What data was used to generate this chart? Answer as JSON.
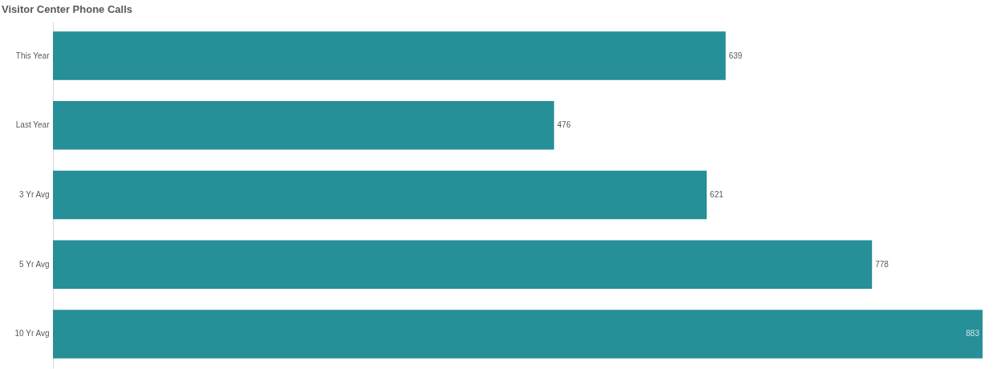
{
  "chart_data": {
    "type": "bar",
    "orientation": "horizontal",
    "title": "Visitor Center Phone Calls",
    "categories": [
      "This Year",
      "Last Year",
      "3 Yr Avg",
      "5 Yr Avg",
      "10 Yr Avg"
    ],
    "values": [
      639,
      476,
      621,
      778,
      883
    ],
    "color": "#268f97",
    "data_labels": true,
    "tick_labels": "y"
  }
}
